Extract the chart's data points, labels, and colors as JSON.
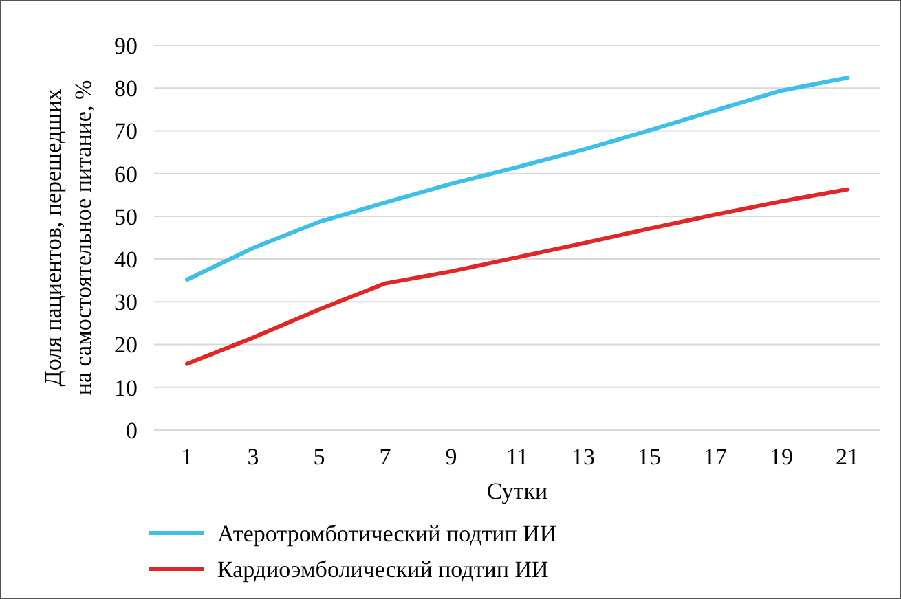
{
  "chart_data": {
    "type": "line",
    "xlabel": "Сутки",
    "ylabel": "Доля пациентов, перешедших\nна самостоятельное питание, %",
    "x": [
      1,
      3,
      5,
      7,
      9,
      11,
      13,
      15,
      17,
      19,
      21
    ],
    "xlim": [
      0,
      22
    ],
    "xticks": [
      1,
      3,
      5,
      7,
      9,
      11,
      13,
      15,
      17,
      19,
      21
    ],
    "ylim": [
      0,
      90
    ],
    "yticks": [
      0,
      10,
      20,
      30,
      40,
      50,
      60,
      70,
      80,
      90
    ],
    "grid": "y",
    "legend": "bottom",
    "marker": "none",
    "series": [
      {
        "name": "Атеротромботический подтип ИИ",
        "color": "#3dbfe8",
        "values": [
          35.2,
          42.6,
          48.7,
          53.2,
          57.6,
          61.5,
          65.6,
          70.1,
          74.8,
          79.4,
          82.4
        ]
      },
      {
        "name": "Кардиоэмболический подтип ИИ",
        "color": "#e02626",
        "values": [
          15.5,
          21.6,
          28.2,
          34.3,
          37.1,
          40.4,
          43.7,
          47.1,
          50.4,
          53.5,
          56.3
        ]
      }
    ]
  }
}
